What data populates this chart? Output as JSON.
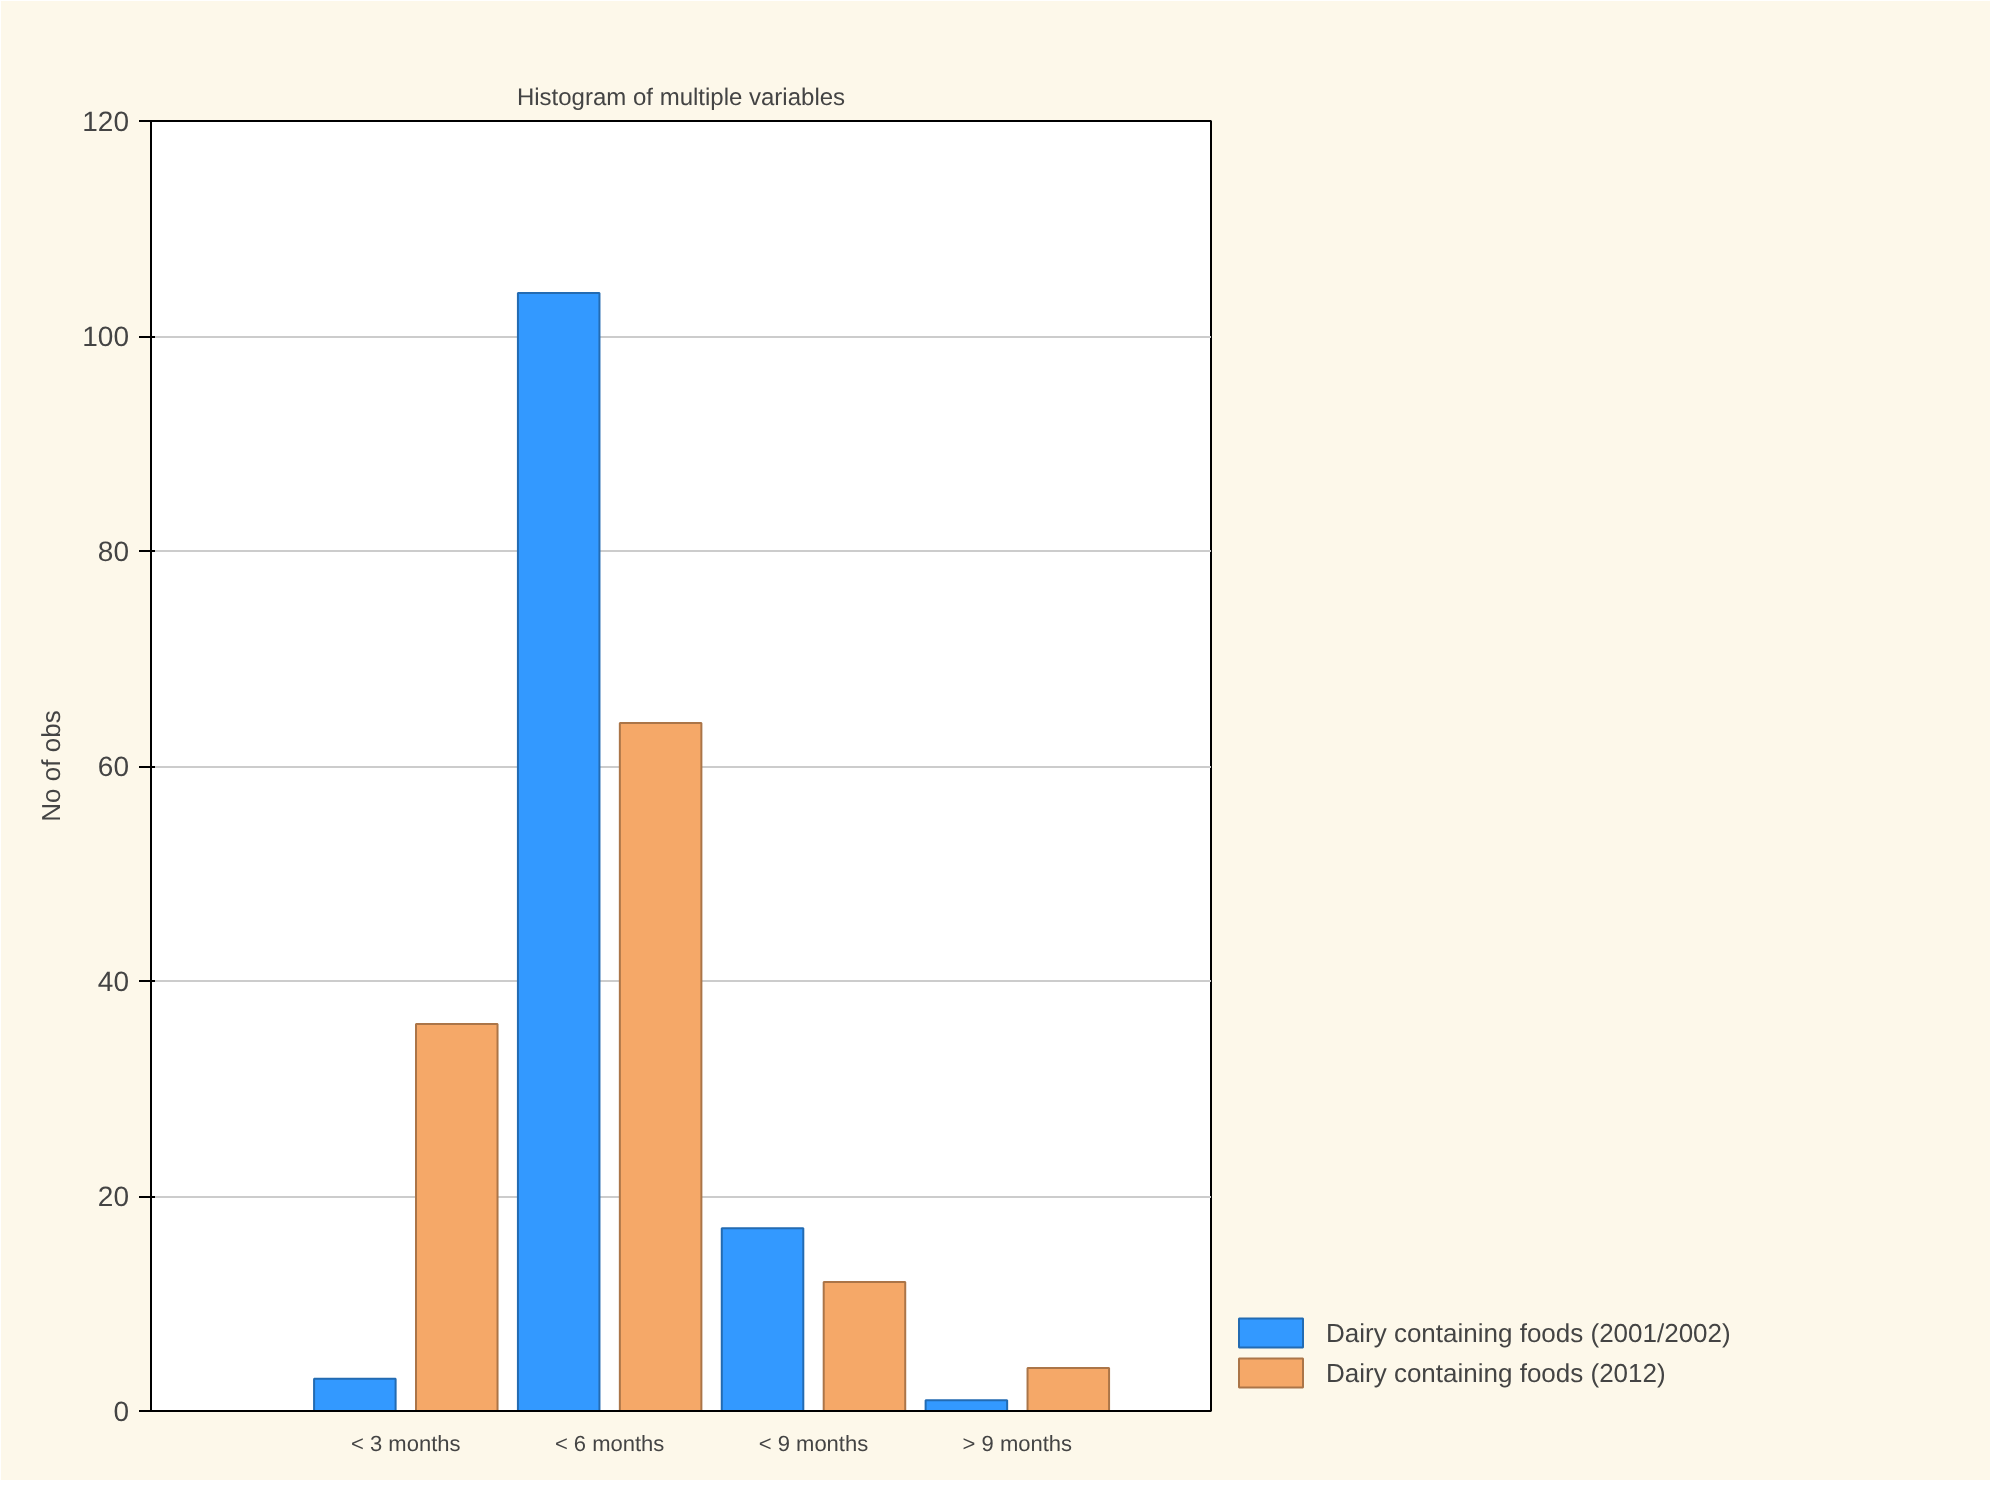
{
  "chart_data": {
    "type": "bar",
    "title": "Histogram of multiple variables",
    "ylabel": "No of obs",
    "categories": [
      "< 3 months",
      "< 6 months",
      "< 9 months",
      "> 9 months"
    ],
    "series": [
      {
        "name": "Dairy containing foods (2001/2002)",
        "color": "#3399ff",
        "values": [
          3,
          104,
          17,
          1
        ]
      },
      {
        "name": "Dairy containing foods (2012)",
        "color": "#f5a868",
        "values": [
          36,
          64,
          12,
          4
        ]
      }
    ],
    "ylim": [
      0,
      120
    ],
    "yticks": [
      0,
      20,
      40,
      60,
      80,
      100,
      120
    ],
    "grid": "y",
    "legend": "bottom right"
  }
}
